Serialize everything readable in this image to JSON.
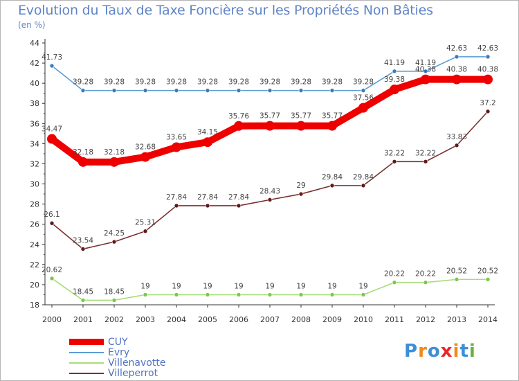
{
  "header": {
    "title": "Evolution du Taux de Taxe Foncière sur les Propriétés Non Bâties",
    "unit": "(en %)"
  },
  "chart_data": {
    "type": "line",
    "title": "Evolution du Taux de Taxe Foncière sur les Propriétés Non Bâties",
    "ylabel": "(en %)",
    "xlabel": "",
    "x": [
      "2000",
      "2001",
      "2002",
      "2003",
      "2004",
      "2005",
      "2006",
      "2007",
      "2008",
      "2009",
      "2010",
      "2011",
      "2012",
      "2013",
      "2014"
    ],
    "ylim": [
      18,
      44
    ],
    "yticks": [
      18,
      20,
      22,
      24,
      26,
      28,
      30,
      32,
      34,
      36,
      38,
      40,
      42,
      44
    ],
    "grid": false,
    "legend_position": "bottom-left",
    "series": [
      {
        "name": "Evry",
        "color": "#5b9bd5",
        "point_color": "#3d7ab8",
        "values": [
          41.73,
          39.28,
          39.28,
          39.28,
          39.28,
          39.28,
          39.28,
          39.28,
          39.28,
          39.28,
          39.28,
          41.19,
          41.19,
          42.63,
          42.63
        ],
        "labels": [
          "41.73",
          "39.28",
          "39.28",
          "39.28",
          "39.28",
          "39.28",
          "39.28",
          "39.28",
          "39.28",
          "39.28",
          "39.28",
          "41.19",
          "41.19",
          "42.63",
          "42.63"
        ]
      },
      {
        "name": "Villenavotte",
        "color": "#a8dc78",
        "point_color": "#7cc84a",
        "values": [
          20.62,
          18.45,
          18.45,
          19,
          19,
          19,
          19,
          19,
          19,
          19,
          19,
          20.22,
          20.22,
          20.52,
          20.52
        ],
        "labels": [
          "20.62",
          "18.45",
          "18.45",
          "19",
          "19",
          "19",
          "19",
          "19",
          "19",
          "19",
          "19",
          "20.22",
          "20.22",
          "20.52",
          "20.52"
        ]
      },
      {
        "name": "Villeperrot",
        "color": "#7a3030",
        "point_color": "#5e1a1a",
        "values": [
          26.1,
          23.54,
          24.25,
          25.31,
          27.84,
          27.84,
          27.84,
          28.43,
          29,
          29.84,
          29.84,
          32.22,
          32.22,
          33.83,
          37.2
        ],
        "labels": [
          "26.1",
          "23.54",
          "24.25",
          "25.31",
          "27.84",
          "27.84",
          "27.84",
          "28.43",
          "29",
          "29.84",
          "29.84",
          "32.22",
          "32.22",
          "33.83",
          "37.2"
        ]
      },
      {
        "name": "CUY",
        "color": "#ee0000",
        "point_color": "#ee0000",
        "values": [
          34.47,
          32.18,
          32.18,
          32.68,
          33.65,
          34.15,
          35.76,
          35.77,
          35.77,
          35.77,
          37.56,
          39.38,
          40.38,
          40.38,
          40.38
        ],
        "labels": [
          "34.47",
          "32.18",
          "32.18",
          "32.68",
          "33.65",
          "34.15",
          "35.76",
          "35.77",
          "35.77",
          "35.77",
          "37.56",
          "39.38",
          "40.38",
          "40.38",
          "40.38"
        ]
      }
    ]
  },
  "legend": {
    "items": [
      {
        "name": "CUY",
        "color": "#ee0000"
      },
      {
        "name": "Evry",
        "color": "#5b9bd5"
      },
      {
        "name": "Villenavotte",
        "color": "#a8dc78"
      },
      {
        "name": "Villeperrot",
        "color": "#7a3030"
      }
    ]
  },
  "logo": {
    "letters": [
      "P",
      "r",
      "o",
      "x",
      "i",
      "t",
      "i"
    ],
    "colors": [
      "#3b8fd6",
      "#f08a1c",
      "#3b8fd6",
      "#e8262a",
      "#f08a1c",
      "#3b8fd6",
      "#6ab03c"
    ]
  }
}
